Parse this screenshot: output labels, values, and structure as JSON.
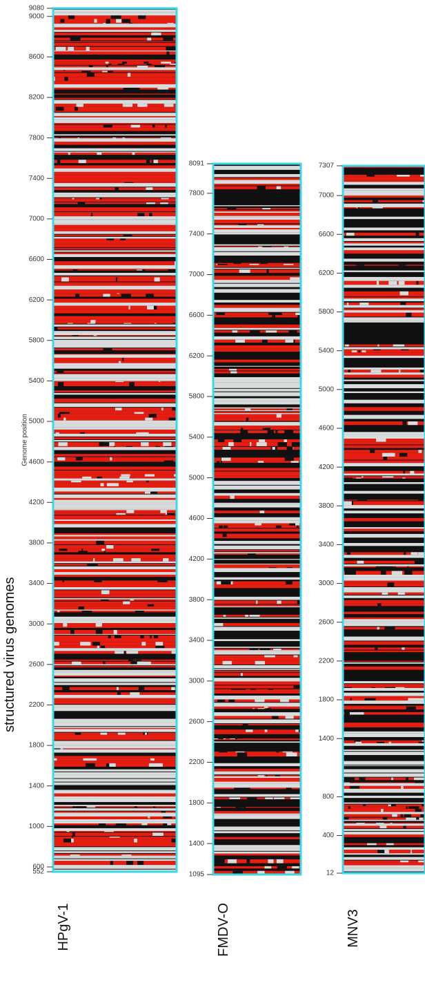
{
  "title": "structured virus genomes",
  "chart_data": [
    {
      "type": "heatmap",
      "title": "HPgV-1",
      "ylabel": "Genome position",
      "ylim": [
        552,
        9080
      ],
      "yticks": [
        552,
        600,
        1000,
        1400,
        1800,
        2200,
        2600,
        3000,
        3400,
        3800,
        4200,
        4600,
        5000,
        5400,
        5800,
        6200,
        6600,
        7000,
        7400,
        7800,
        8200,
        8600,
        9000,
        9080
      ]
    },
    {
      "type": "heatmap",
      "title": "FMDV-O",
      "ylim": [
        1095,
        8091
      ],
      "yticks": [
        1095,
        1400,
        1800,
        2200,
        2600,
        3000,
        3400,
        3800,
        4200,
        4600,
        5000,
        5400,
        5800,
        6200,
        6600,
        7000,
        7400,
        7800,
        8091
      ]
    },
    {
      "type": "heatmap",
      "title": "MNV3",
      "ylim": [
        12,
        7307
      ],
      "yticks": [
        12,
        400,
        800,
        1400,
        1800,
        2200,
        2600,
        3000,
        3400,
        3800,
        4200,
        4600,
        5000,
        5400,
        5800,
        6200,
        6600,
        7000,
        7307
      ]
    }
  ]
}
